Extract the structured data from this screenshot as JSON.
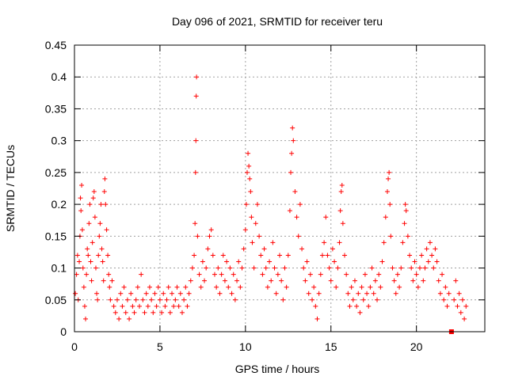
{
  "chart_data": {
    "type": "scatter",
    "title": "Day 096 of 2021, SRMTID for receiver teru",
    "xlabel": "GPS time / hours",
    "ylabel": "SRMTID / TECUs",
    "xlim": [
      0,
      24
    ],
    "ylim": [
      0,
      0.45
    ],
    "xticks": [
      0,
      5,
      10,
      15,
      20
    ],
    "xtick_labels": [
      "0",
      "5",
      "10",
      "15",
      "20"
    ],
    "yticks": [
      0,
      0.05,
      0.1,
      0.15,
      0.2,
      0.25,
      0.3,
      0.35,
      0.4,
      0.45
    ],
    "ytick_labels": [
      "0",
      "0.05",
      "0.1",
      "0.15",
      "0.2",
      "0.25",
      "0.3",
      "0.35",
      "0.4",
      "0.45"
    ],
    "grid": true,
    "marker": "plus",
    "color": "#ff0000",
    "outlier_marker": {
      "x": 22.05,
      "y": 0.0,
      "shape": "square"
    },
    "series": [
      {
        "name": "SRMTID",
        "points": [
          [
            0.05,
            0.06
          ],
          [
            0.12,
            0.09
          ],
          [
            0.18,
            0.12
          ],
          [
            0.22,
            0.05
          ],
          [
            0.28,
            0.11
          ],
          [
            0.32,
            0.15
          ],
          [
            0.35,
            0.21
          ],
          [
            0.38,
            0.19
          ],
          [
            0.42,
            0.23
          ],
          [
            0.46,
            0.16
          ],
          [
            0.5,
            0.1
          ],
          [
            0.55,
            0.07
          ],
          [
            0.6,
            0.04
          ],
          [
            0.65,
            0.02
          ],
          [
            0.7,
            0.09
          ],
          [
            0.75,
            0.13
          ],
          [
            0.8,
            0.12
          ],
          [
            0.85,
            0.17
          ],
          [
            0.9,
            0.2
          ],
          [
            0.95,
            0.11
          ],
          [
            1.0,
            0.08
          ],
          [
            1.05,
            0.14
          ],
          [
            1.1,
            0.21
          ],
          [
            1.15,
            0.22
          ],
          [
            1.2,
            0.18
          ],
          [
            1.25,
            0.1
          ],
          [
            1.3,
            0.06
          ],
          [
            1.35,
            0.05
          ],
          [
            1.4,
            0.12
          ],
          [
            1.45,
            0.15
          ],
          [
            1.5,
            0.17
          ],
          [
            1.55,
            0.2
          ],
          [
            1.6,
            0.13
          ],
          [
            1.65,
            0.11
          ],
          [
            1.7,
            0.08
          ],
          [
            1.75,
            0.22
          ],
          [
            1.78,
            0.24
          ],
          [
            1.82,
            0.2
          ],
          [
            1.88,
            0.16
          ],
          [
            1.95,
            0.12
          ],
          [
            2.0,
            0.09
          ],
          [
            2.05,
            0.07
          ],
          [
            2.1,
            0.05
          ],
          [
            2.2,
            0.08
          ],
          [
            2.3,
            0.04
          ],
          [
            2.4,
            0.03
          ],
          [
            2.5,
            0.05
          ],
          [
            2.6,
            0.02
          ],
          [
            2.7,
            0.06
          ],
          [
            2.8,
            0.04
          ],
          [
            2.9,
            0.07
          ],
          [
            3.0,
            0.03
          ],
          [
            3.1,
            0.05
          ],
          [
            3.2,
            0.02
          ],
          [
            3.3,
            0.06
          ],
          [
            3.4,
            0.04
          ],
          [
            3.5,
            0.03
          ],
          [
            3.6,
            0.05
          ],
          [
            3.7,
            0.07
          ],
          [
            3.8,
            0.04
          ],
          [
            3.9,
            0.09
          ],
          [
            4.0,
            0.05
          ],
          [
            4.1,
            0.03
          ],
          [
            4.2,
            0.06
          ],
          [
            4.3,
            0.04
          ],
          [
            4.4,
            0.07
          ],
          [
            4.5,
            0.05
          ],
          [
            4.6,
            0.03
          ],
          [
            4.7,
            0.06
          ],
          [
            4.8,
            0.04
          ],
          [
            4.9,
            0.07
          ],
          [
            5.0,
            0.05
          ],
          [
            5.1,
            0.03
          ],
          [
            5.2,
            0.06
          ],
          [
            5.3,
            0.04
          ],
          [
            5.4,
            0.05
          ],
          [
            5.5,
            0.07
          ],
          [
            5.6,
            0.03
          ],
          [
            5.7,
            0.06
          ],
          [
            5.8,
            0.04
          ],
          [
            5.9,
            0.05
          ],
          [
            6.0,
            0.07
          ],
          [
            6.1,
            0.04
          ],
          [
            6.2,
            0.06
          ],
          [
            6.3,
            0.03
          ],
          [
            6.4,
            0.05
          ],
          [
            6.5,
            0.07
          ],
          [
            6.6,
            0.04
          ],
          [
            6.7,
            0.06
          ],
          [
            6.8,
            0.08
          ],
          [
            6.9,
            0.1
          ],
          [
            7.0,
            0.12
          ],
          [
            7.05,
            0.17
          ],
          [
            7.08,
            0.25
          ],
          [
            7.1,
            0.3
          ],
          [
            7.12,
            0.37
          ],
          [
            7.14,
            0.4
          ],
          [
            7.2,
            0.15
          ],
          [
            7.3,
            0.09
          ],
          [
            7.4,
            0.07
          ],
          [
            7.5,
            0.11
          ],
          [
            7.6,
            0.08
          ],
          [
            7.7,
            0.1
          ],
          [
            7.8,
            0.13
          ],
          [
            7.9,
            0.15
          ],
          [
            8.0,
            0.16
          ],
          [
            8.1,
            0.12
          ],
          [
            8.2,
            0.09
          ],
          [
            8.3,
            0.07
          ],
          [
            8.4,
            0.1
          ],
          [
            8.5,
            0.06
          ],
          [
            8.6,
            0.09
          ],
          [
            8.7,
            0.12
          ],
          [
            8.8,
            0.08
          ],
          [
            8.9,
            0.11
          ],
          [
            9.0,
            0.07
          ],
          [
            9.1,
            0.1
          ],
          [
            9.2,
            0.06
          ],
          [
            9.3,
            0.09
          ],
          [
            9.4,
            0.05
          ],
          [
            9.5,
            0.08
          ],
          [
            9.6,
            0.11
          ],
          [
            9.7,
            0.07
          ],
          [
            9.8,
            0.1
          ],
          [
            9.9,
            0.13
          ],
          [
            10.0,
            0.16
          ],
          [
            10.05,
            0.2
          ],
          [
            10.1,
            0.25
          ],
          [
            10.15,
            0.28
          ],
          [
            10.2,
            0.26
          ],
          [
            10.25,
            0.24
          ],
          [
            10.3,
            0.22
          ],
          [
            10.35,
            0.18
          ],
          [
            10.4,
            0.14
          ],
          [
            10.5,
            0.1
          ],
          [
            10.6,
            0.17
          ],
          [
            10.7,
            0.2
          ],
          [
            10.8,
            0.15
          ],
          [
            10.9,
            0.12
          ],
          [
            11.0,
            0.09
          ],
          [
            11.1,
            0.13
          ],
          [
            11.2,
            0.1
          ],
          [
            11.3,
            0.07
          ],
          [
            11.4,
            0.11
          ],
          [
            11.5,
            0.08
          ],
          [
            11.6,
            0.14
          ],
          [
            11.7,
            0.1
          ],
          [
            11.8,
            0.06
          ],
          [
            11.9,
            0.09
          ],
          [
            12.0,
            0.12
          ],
          [
            12.1,
            0.08
          ],
          [
            12.2,
            0.05
          ],
          [
            12.3,
            0.1
          ],
          [
            12.4,
            0.07
          ],
          [
            12.5,
            0.12
          ],
          [
            12.6,
            0.19
          ],
          [
            12.65,
            0.25
          ],
          [
            12.7,
            0.28
          ],
          [
            12.75,
            0.32
          ],
          [
            12.8,
            0.3
          ],
          [
            12.9,
            0.22
          ],
          [
            13.0,
            0.18
          ],
          [
            13.1,
            0.15
          ],
          [
            13.2,
            0.2
          ],
          [
            13.3,
            0.13
          ],
          [
            13.4,
            0.1
          ],
          [
            13.5,
            0.08
          ],
          [
            13.6,
            0.11
          ],
          [
            13.7,
            0.06
          ],
          [
            13.8,
            0.09
          ],
          [
            13.9,
            0.05
          ],
          [
            14.0,
            0.07
          ],
          [
            14.1,
            0.04
          ],
          [
            14.2,
            0.02
          ],
          [
            14.3,
            0.06
          ],
          [
            14.4,
            0.09
          ],
          [
            14.5,
            0.12
          ],
          [
            14.6,
            0.14
          ],
          [
            14.7,
            0.18
          ],
          [
            14.8,
            0.12
          ],
          [
            14.9,
            0.1
          ],
          [
            15.0,
            0.08
          ],
          [
            15.1,
            0.13
          ],
          [
            15.2,
            0.11
          ],
          [
            15.3,
            0.07
          ],
          [
            15.4,
            0.1
          ],
          [
            15.5,
            0.14
          ],
          [
            15.55,
            0.19
          ],
          [
            15.6,
            0.22
          ],
          [
            15.65,
            0.23
          ],
          [
            15.7,
            0.17
          ],
          [
            15.8,
            0.12
          ],
          [
            15.9,
            0.09
          ],
          [
            16.0,
            0.06
          ],
          [
            16.1,
            0.04
          ],
          [
            16.2,
            0.07
          ],
          [
            16.3,
            0.05
          ],
          [
            16.4,
            0.08
          ],
          [
            16.5,
            0.04
          ],
          [
            16.6,
            0.06
          ],
          [
            16.7,
            0.03
          ],
          [
            16.8,
            0.07
          ],
          [
            16.9,
            0.05
          ],
          [
            17.0,
            0.09
          ],
          [
            17.1,
            0.06
          ],
          [
            17.2,
            0.04
          ],
          [
            17.3,
            0.07
          ],
          [
            17.4,
            0.1
          ],
          [
            17.5,
            0.06
          ],
          [
            17.6,
            0.08
          ],
          [
            17.7,
            0.05
          ],
          [
            17.8,
            0.09
          ],
          [
            17.9,
            0.07
          ],
          [
            18.0,
            0.11
          ],
          [
            18.1,
            0.14
          ],
          [
            18.2,
            0.18
          ],
          [
            18.3,
            0.22
          ],
          [
            18.35,
            0.24
          ],
          [
            18.4,
            0.25
          ],
          [
            18.45,
            0.2
          ],
          [
            18.5,
            0.15
          ],
          [
            18.6,
            0.1
          ],
          [
            18.7,
            0.08
          ],
          [
            18.8,
            0.06
          ],
          [
            18.9,
            0.09
          ],
          [
            19.0,
            0.07
          ],
          [
            19.1,
            0.1
          ],
          [
            19.2,
            0.14
          ],
          [
            19.3,
            0.17
          ],
          [
            19.35,
            0.2
          ],
          [
            19.4,
            0.19
          ],
          [
            19.5,
            0.15
          ],
          [
            19.6,
            0.12
          ],
          [
            19.7,
            0.1
          ],
          [
            19.8,
            0.08
          ],
          [
            19.9,
            0.11
          ],
          [
            20.0,
            0.09
          ],
          [
            20.1,
            0.07
          ],
          [
            20.2,
            0.1
          ],
          [
            20.3,
            0.12
          ],
          [
            20.4,
            0.08
          ],
          [
            20.5,
            0.1
          ],
          [
            20.6,
            0.13
          ],
          [
            20.7,
            0.11
          ],
          [
            20.8,
            0.14
          ],
          [
            20.9,
            0.12
          ],
          [
            21.0,
            0.1
          ],
          [
            21.1,
            0.13
          ],
          [
            21.2,
            0.11
          ],
          [
            21.3,
            0.08
          ],
          [
            21.4,
            0.06
          ],
          [
            21.5,
            0.09
          ],
          [
            21.6,
            0.05
          ],
          [
            21.7,
            0.07
          ],
          [
            21.8,
            0.04
          ],
          [
            21.9,
            0.06
          ],
          [
            22.2,
            0.05
          ],
          [
            22.3,
            0.08
          ],
          [
            22.4,
            0.04
          ],
          [
            22.5,
            0.06
          ],
          [
            22.6,
            0.03
          ],
          [
            22.7,
            0.05
          ],
          [
            22.8,
            0.02
          ],
          [
            22.9,
            0.04
          ]
        ]
      }
    ]
  }
}
